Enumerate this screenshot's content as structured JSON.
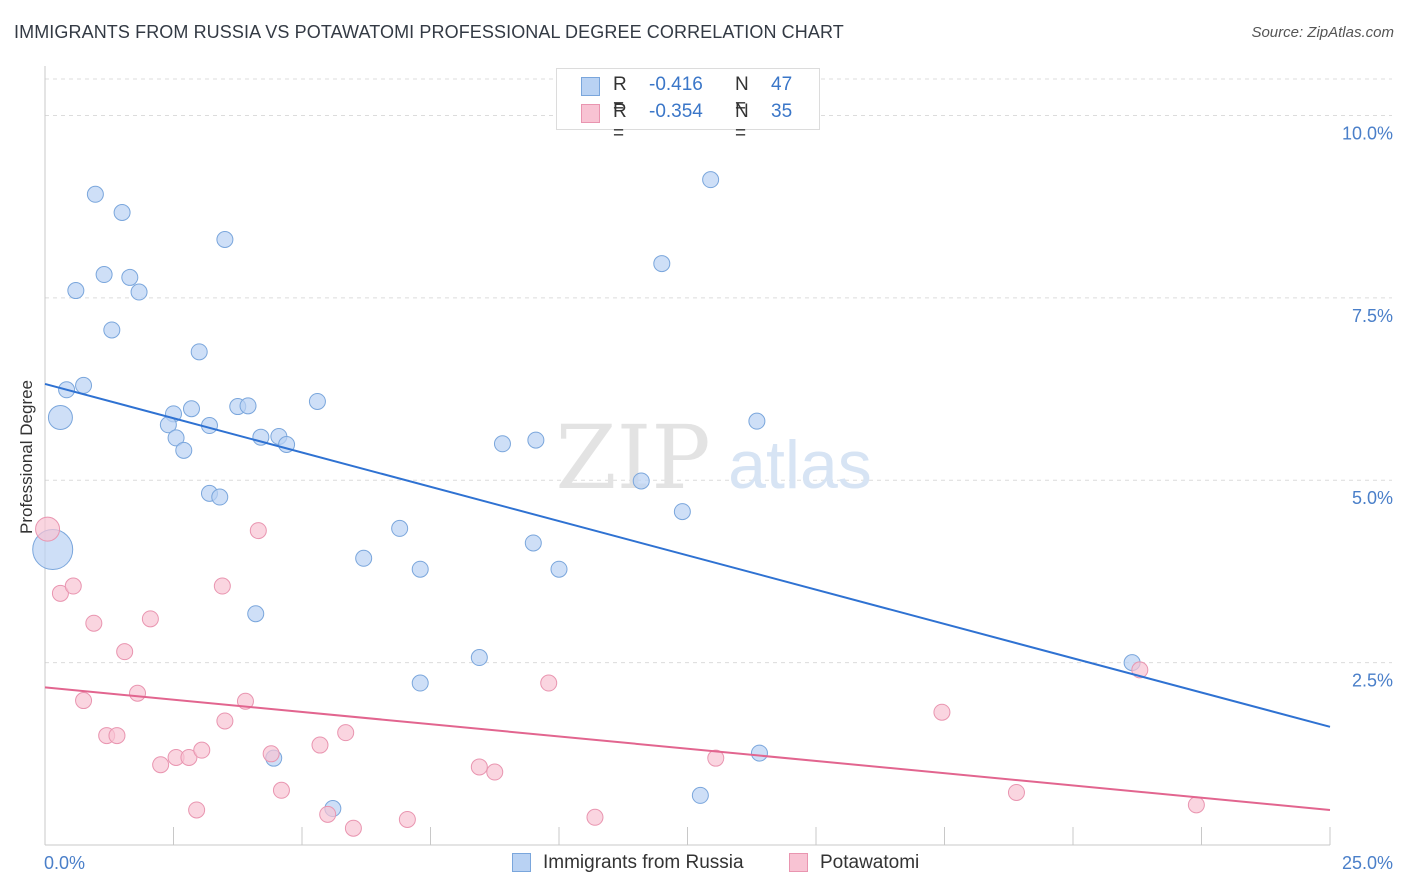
{
  "title": "IMMIGRANTS FROM RUSSIA VS POTAWATOMI PROFESSIONAL DEGREE CORRELATION CHART",
  "source": "Source: ZipAtlas.com",
  "watermark": {
    "part1": "ZIP",
    "part2": "atlas"
  },
  "colors": {
    "blue_fill": "#b9d2f3",
    "blue_stroke": "#7aa6dc",
    "blue_line": "#2f72d2",
    "pink_fill": "#f8c3d3",
    "pink_stroke": "#e995b0",
    "pink_line": "#e2658f",
    "tick_text": "#4a7fc9",
    "grid": "#dcdcdc"
  },
  "legend_top": [
    {
      "r_label": "R =",
      "r_value": "-0.416",
      "n_label": "N =",
      "n_value": "47"
    },
    {
      "r_label": "R =",
      "r_value": "-0.354",
      "n_label": "N =",
      "n_value": "35"
    }
  ],
  "legend_bottom": [
    "Immigrants from Russia",
    "Potawatomi"
  ],
  "chart_data": {
    "type": "scatter",
    "title": "IMMIGRANTS FROM RUSSIA VS POTAWATOMI PROFESSIONAL DEGREE CORRELATION CHART",
    "xlabel": "",
    "ylabel": "Professional Degree",
    "xlim": [
      0,
      25
    ],
    "ylim": [
      0,
      10.5
    ],
    "x_tick_labels": [
      "0.0%",
      "25.0%"
    ],
    "y_ticks": [
      2.5,
      5.0,
      7.5,
      10.0
    ],
    "y_tick_labels": [
      "2.5%",
      "5.0%",
      "7.5%",
      "10.0%"
    ],
    "grid": true,
    "legend_position": "top-center",
    "series": [
      {
        "name": "Immigrants from Russia",
        "color": "blue",
        "trend": {
          "x": [
            0,
            25
          ],
          "y": [
            6.32,
            1.62
          ]
        },
        "points": [
          {
            "x": 0.15,
            "y": 4.05,
            "size": "large"
          },
          {
            "x": 0.3,
            "y": 5.86,
            "size": "medium"
          },
          {
            "x": 0.42,
            "y": 6.24
          },
          {
            "x": 0.75,
            "y": 6.3
          },
          {
            "x": 0.98,
            "y": 8.92
          },
          {
            "x": 1.5,
            "y": 8.67
          },
          {
            "x": 0.6,
            "y": 7.6
          },
          {
            "x": 1.15,
            "y": 7.82
          },
          {
            "x": 1.65,
            "y": 7.78
          },
          {
            "x": 1.83,
            "y": 7.58
          },
          {
            "x": 1.3,
            "y": 7.06
          },
          {
            "x": 3.5,
            "y": 8.3
          },
          {
            "x": 3.0,
            "y": 6.76
          },
          {
            "x": 2.5,
            "y": 5.91
          },
          {
            "x": 2.4,
            "y": 5.76
          },
          {
            "x": 2.55,
            "y": 5.58
          },
          {
            "x": 2.85,
            "y": 5.98
          },
          {
            "x": 2.7,
            "y": 5.41
          },
          {
            "x": 3.2,
            "y": 5.75
          },
          {
            "x": 3.75,
            "y": 6.01
          },
          {
            "x": 3.95,
            "y": 6.02
          },
          {
            "x": 4.2,
            "y": 5.59
          },
          {
            "x": 4.55,
            "y": 5.6
          },
          {
            "x": 4.7,
            "y": 5.49
          },
          {
            "x": 5.3,
            "y": 6.08
          },
          {
            "x": 3.2,
            "y": 4.82
          },
          {
            "x": 3.4,
            "y": 4.77
          },
          {
            "x": 6.2,
            "y": 3.93
          },
          {
            "x": 6.9,
            "y": 4.34
          },
          {
            "x": 7.3,
            "y": 3.78
          },
          {
            "x": 4.1,
            "y": 3.17
          },
          {
            "x": 8.9,
            "y": 5.5
          },
          {
            "x": 9.55,
            "y": 5.55
          },
          {
            "x": 9.5,
            "y": 4.14
          },
          {
            "x": 10.0,
            "y": 3.78
          },
          {
            "x": 11.6,
            "y": 4.99
          },
          {
            "x": 12.0,
            "y": 7.97
          },
          {
            "x": 12.4,
            "y": 4.57
          },
          {
            "x": 12.95,
            "y": 9.12
          },
          {
            "x": 13.85,
            "y": 5.81
          },
          {
            "x": 8.45,
            "y": 2.57
          },
          {
            "x": 7.3,
            "y": 2.22
          },
          {
            "x": 4.45,
            "y": 1.19
          },
          {
            "x": 13.9,
            "y": 1.26
          },
          {
            "x": 12.75,
            "y": 0.68
          },
          {
            "x": 5.6,
            "y": 0.5
          },
          {
            "x": 21.15,
            "y": 2.5
          }
        ]
      },
      {
        "name": "Potawatomi",
        "color": "pink",
        "trend": {
          "x": [
            0,
            25
          ],
          "y": [
            2.16,
            0.48
          ]
        },
        "points": [
          {
            "x": 0.05,
            "y": 4.33,
            "size": "medium"
          },
          {
            "x": 0.3,
            "y": 3.45
          },
          {
            "x": 0.55,
            "y": 3.55
          },
          {
            "x": 0.95,
            "y": 3.04
          },
          {
            "x": 1.55,
            "y": 2.65
          },
          {
            "x": 2.05,
            "y": 3.1
          },
          {
            "x": 0.75,
            "y": 1.98
          },
          {
            "x": 1.8,
            "y": 2.08
          },
          {
            "x": 1.2,
            "y": 1.5
          },
          {
            "x": 1.4,
            "y": 1.5
          },
          {
            "x": 2.25,
            "y": 1.1
          },
          {
            "x": 2.55,
            "y": 1.2
          },
          {
            "x": 2.8,
            "y": 1.2
          },
          {
            "x": 3.05,
            "y": 1.3
          },
          {
            "x": 3.5,
            "y": 1.7
          },
          {
            "x": 3.45,
            "y": 3.55
          },
          {
            "x": 3.9,
            "y": 1.97
          },
          {
            "x": 4.15,
            "y": 4.31
          },
          {
            "x": 4.4,
            "y": 1.25
          },
          {
            "x": 4.6,
            "y": 0.75
          },
          {
            "x": 5.35,
            "y": 1.37
          },
          {
            "x": 5.85,
            "y": 1.54
          },
          {
            "x": 2.95,
            "y": 0.48
          },
          {
            "x": 5.5,
            "y": 0.42
          },
          {
            "x": 6.0,
            "y": 0.23
          },
          {
            "x": 7.05,
            "y": 0.35
          },
          {
            "x": 8.45,
            "y": 1.07
          },
          {
            "x": 8.75,
            "y": 1.0
          },
          {
            "x": 9.8,
            "y": 2.22
          },
          {
            "x": 10.7,
            "y": 0.38
          },
          {
            "x": 13.05,
            "y": 1.19
          },
          {
            "x": 17.45,
            "y": 1.82
          },
          {
            "x": 18.9,
            "y": 0.72
          },
          {
            "x": 21.3,
            "y": 2.4
          },
          {
            "x": 22.4,
            "y": 0.55
          }
        ]
      }
    ]
  }
}
